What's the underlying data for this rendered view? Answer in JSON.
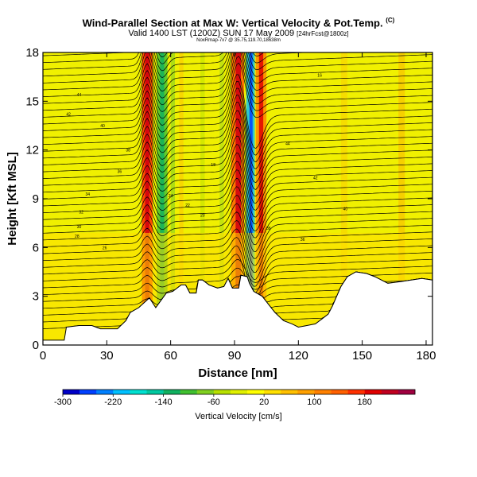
{
  "header": {
    "title": "Wind-Parallel Section at Max W: Vertical Velocity & Pot.Temp.",
    "title_mark": "(C)",
    "subtitle": "Valid 1400 LST (1200Z) SUN 17 May 2009",
    "subtitle_small": "[24hrFcst@1800z]",
    "caption": "NoxRmap-7x7 @ 35.75,119.70,18638m"
  },
  "chart_data": {
    "type": "heatmap",
    "title": "Wind-Parallel Section at Max W: Vertical Velocity & Pot.Temp.",
    "xlabel": "Distance [nm]",
    "ylabel": "Height [Kft MSL]",
    "xlim": [
      0,
      183
    ],
    "ylim": [
      0,
      18
    ],
    "x_ticks": [
      0,
      30,
      60,
      90,
      120,
      150,
      180
    ],
    "y_ticks": [
      0,
      3,
      6,
      9,
      12,
      15,
      18
    ],
    "colorbar": {
      "label": "Vertical Velocity [cm/s]",
      "tick_values": [
        -300,
        -220,
        -140,
        -60,
        20,
        100,
        180
      ],
      "range": [
        -300,
        260
      ],
      "colors": [
        "#0000c8",
        "#0040ff",
        "#0080ff",
        "#00c0ff",
        "#00e0d0",
        "#00c8a0",
        "#10b060",
        "#40c030",
        "#80d020",
        "#b8e000",
        "#e0f000",
        "#ffff00",
        "#ffe000",
        "#ffc000",
        "#ffa000",
        "#ff8000",
        "#ff6000",
        "#ff3000",
        "#e00000",
        "#c00020",
        "#a00040"
      ]
    },
    "updraft_columns_nm": [
      49,
      92,
      102
    ],
    "downdraft_columns_nm": [
      56,
      98
    ],
    "theta_contour_labels": [
      "44",
      "42",
      "40",
      "38",
      "36",
      "34",
      "32",
      "30",
      "28",
      "26",
      "24",
      "22",
      "20",
      "18",
      "16"
    ],
    "terrain_profile": [
      [
        0,
        0.3
      ],
      [
        10,
        0.3
      ],
      [
        11,
        1.1
      ],
      [
        17,
        1.2
      ],
      [
        23,
        1.2
      ],
      [
        27,
        1.0
      ],
      [
        35,
        1.0
      ],
      [
        39,
        1.5
      ],
      [
        41,
        2.0
      ],
      [
        45,
        2.3
      ],
      [
        50,
        2.9
      ],
      [
        53,
        2.3
      ],
      [
        58,
        3.2
      ],
      [
        61,
        3.3
      ],
      [
        65,
        3.7
      ],
      [
        67,
        3.7
      ],
      [
        69,
        3.2
      ],
      [
        72,
        3.2
      ],
      [
        73,
        4.0
      ],
      [
        75,
        4.0
      ],
      [
        78,
        3.7
      ],
      [
        82,
        3.5
      ],
      [
        85,
        3.6
      ],
      [
        87,
        4.1
      ],
      [
        89,
        3.5
      ],
      [
        92,
        3.5
      ],
      [
        93,
        4.3
      ],
      [
        96,
        4.2
      ],
      [
        97,
        3.8
      ],
      [
        99,
        3.3
      ],
      [
        103,
        3.0
      ],
      [
        106,
        2.5
      ],
      [
        109,
        2.0
      ],
      [
        113,
        1.5
      ],
      [
        117,
        1.3
      ],
      [
        120,
        1.1
      ],
      [
        124,
        1.2
      ],
      [
        128,
        1.3
      ],
      [
        131,
        1.6
      ],
      [
        134,
        1.9
      ],
      [
        136,
        2.4
      ],
      [
        138,
        3.0
      ],
      [
        140,
        3.6
      ],
      [
        143,
        4.2
      ],
      [
        147,
        4.5
      ],
      [
        152,
        4.4
      ],
      [
        156,
        4.2
      ],
      [
        159,
        4.0
      ],
      [
        162,
        3.8
      ],
      [
        168,
        3.9
      ],
      [
        173,
        4.0
      ],
      [
        178,
        4.1
      ],
      [
        183,
        4.0
      ]
    ]
  }
}
